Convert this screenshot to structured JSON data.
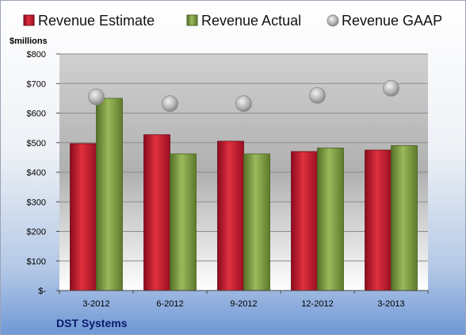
{
  "chart_data": {
    "type": "bar",
    "title": "",
    "ylabel": "$millions",
    "company": "DST Systems",
    "categories": [
      "3-2012",
      "6-2012",
      "9-2012",
      "12-2012",
      "3-2013"
    ],
    "series": [
      {
        "name": "Revenue Estimate",
        "kind": "bar",
        "color": "#c8102e",
        "values": [
          497,
          527,
          505,
          470,
          475
        ]
      },
      {
        "name": "Revenue Actual",
        "kind": "bar",
        "color": "#7a9a3a",
        "values": [
          650,
          462,
          462,
          482,
          490
        ]
      },
      {
        "name": "Revenue GAAP",
        "kind": "point",
        "color": "#a8a8a8",
        "values": [
          655,
          632,
          632,
          660,
          684
        ]
      }
    ],
    "ylim": [
      0,
      800
    ],
    "yticks": [
      800,
      700,
      600,
      500,
      400,
      300,
      200,
      100,
      0
    ],
    "ytick_labels": [
      "$800",
      "$700",
      "$600",
      "$500",
      "$400",
      "$300",
      "$200",
      "$100",
      "$-"
    ],
    "grid": true,
    "legend_position": "top"
  }
}
